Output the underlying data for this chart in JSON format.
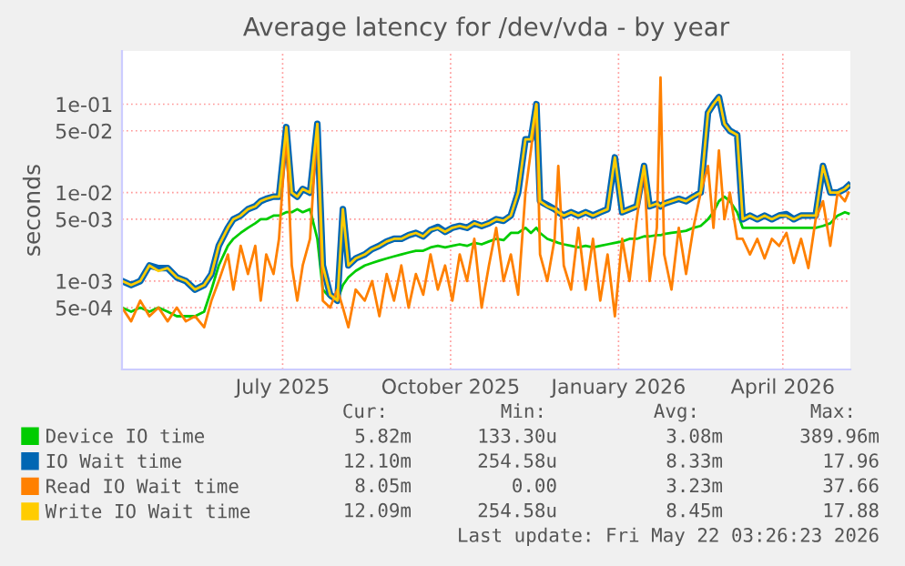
{
  "chart_data": {
    "type": "line",
    "title": "Average latency for /dev/vda - by year",
    "ylabel": "seconds",
    "log": "y",
    "grid": true,
    "legend": "bottom",
    "marker": "none",
    "line_style": "solid",
    "ylim": [
      0.0001,
      0.4
    ],
    "yticks": [
      {
        "value": 0.0005,
        "label": "5e-04"
      },
      {
        "value": 0.001,
        "label": "1e-03"
      },
      {
        "value": 0.005,
        "label": "5e-03"
      },
      {
        "value": 0.01,
        "label": "1e-02"
      },
      {
        "value": 0.05,
        "label": "5e-02"
      },
      {
        "value": 0.1,
        "label": "1e-01"
      }
    ],
    "xlim": [
      "2025-04-18",
      "2026-05-22"
    ],
    "xticks": [
      {
        "value": "2025-07-15",
        "label": "July 2025"
      },
      {
        "value": "2025-10-15",
        "label": "October 2025"
      },
      {
        "value": "2026-01-15",
        "label": "January 2026"
      },
      {
        "value": "2026-04-15",
        "label": "April 2026"
      }
    ],
    "x": [
      "2025-04-18",
      "2025-04-23",
      "2025-04-28",
      "2025-05-03",
      "2025-05-08",
      "2025-05-13",
      "2025-05-18",
      "2025-05-23",
      "2025-05-28",
      "2025-06-02",
      "2025-06-06",
      "2025-06-10",
      "2025-06-15",
      "2025-06-18",
      "2025-06-22",
      "2025-06-26",
      "2025-06-30",
      "2025-07-03",
      "2025-07-06",
      "2025-07-10",
      "2025-07-13",
      "2025-07-17",
      "2025-07-20",
      "2025-07-23",
      "2025-07-26",
      "2025-07-30",
      "2025-08-03",
      "2025-08-06",
      "2025-08-10",
      "2025-08-14",
      "2025-08-17",
      "2025-08-20",
      "2025-08-24",
      "2025-08-29",
      "2025-09-02",
      "2025-09-06",
      "2025-09-10",
      "2025-09-14",
      "2025-09-18",
      "2025-09-22",
      "2025-09-26",
      "2025-09-30",
      "2025-10-04",
      "2025-10-08",
      "2025-10-12",
      "2025-10-16",
      "2025-10-20",
      "2025-10-24",
      "2025-10-28",
      "2025-11-01",
      "2025-11-05",
      "2025-11-09",
      "2025-11-13",
      "2025-11-17",
      "2025-11-21",
      "2025-11-25",
      "2025-11-28",
      "2025-12-01",
      "2025-12-03",
      "2025-12-07",
      "2025-12-11",
      "2025-12-13",
      "2025-12-16",
      "2025-12-20",
      "2025-12-24",
      "2025-12-28",
      "2026-01-01",
      "2026-01-05",
      "2026-01-09",
      "2026-01-13",
      "2026-01-17",
      "2026-01-21",
      "2026-01-25",
      "2026-01-29",
      "2026-02-01",
      "2026-02-05",
      "2026-02-07",
      "2026-02-09",
      "2026-02-13",
      "2026-02-17",
      "2026-02-21",
      "2026-02-25",
      "2026-03-01",
      "2026-03-05",
      "2026-03-08",
      "2026-03-11",
      "2026-03-14",
      "2026-03-17",
      "2026-03-21",
      "2026-03-24",
      "2026-03-28",
      "2026-04-01",
      "2026-04-05",
      "2026-04-09",
      "2026-04-13",
      "2026-04-17",
      "2026-04-21",
      "2026-04-25",
      "2026-04-29",
      "2026-05-03",
      "2026-05-07",
      "2026-05-11",
      "2026-05-15",
      "2026-05-19",
      "2026-05-21"
    ],
    "series": [
      {
        "name": "Device IO time",
        "color": "#00cc00",
        "values": [
          0.0005,
          0.00045,
          0.0005,
          0.00045,
          0.0005,
          0.00045,
          0.0004,
          0.0004,
          0.0004,
          0.00045,
          0.0008,
          0.0015,
          0.0025,
          0.003,
          0.0035,
          0.004,
          0.0045,
          0.005,
          0.005,
          0.0055,
          0.0055,
          0.006,
          0.006,
          0.0065,
          0.006,
          0.0065,
          0.003,
          0.0008,
          0.00065,
          0.0006,
          0.0009,
          0.0011,
          0.0013,
          0.0015,
          0.0016,
          0.0017,
          0.0018,
          0.0019,
          0.002,
          0.0021,
          0.0022,
          0.0022,
          0.0024,
          0.0025,
          0.0024,
          0.0025,
          0.0026,
          0.0025,
          0.0027,
          0.0026,
          0.0028,
          0.003,
          0.0029,
          0.0035,
          0.0035,
          0.004,
          0.0035,
          0.004,
          0.0035,
          0.003,
          0.0028,
          0.0027,
          0.0026,
          0.0025,
          0.0024,
          0.0025,
          0.0024,
          0.0025,
          0.0026,
          0.0027,
          0.0028,
          0.003,
          0.003,
          0.0032,
          0.0032,
          0.0033,
          0.0033,
          0.0034,
          0.0035,
          0.0036,
          0.0037,
          0.004,
          0.0042,
          0.005,
          0.006,
          0.008,
          0.009,
          0.008,
          0.006,
          0.004,
          0.004,
          0.004,
          0.004,
          0.004,
          0.004,
          0.004,
          0.004,
          0.004,
          0.004,
          0.004,
          0.0042,
          0.0045,
          0.0055,
          0.006,
          0.0058
        ]
      },
      {
        "name": "IO Wait time",
        "color": "#0066b3",
        "values": [
          0.001,
          0.0009,
          0.001,
          0.0015,
          0.0014,
          0.0014,
          0.0011,
          0.001,
          0.0008,
          0.0009,
          0.0012,
          0.0025,
          0.004,
          0.005,
          0.0055,
          0.0065,
          0.007,
          0.008,
          0.0085,
          0.009,
          0.009,
          0.055,
          0.01,
          0.009,
          0.011,
          0.01,
          0.06,
          0.0015,
          0.0007,
          0.0006,
          0.0065,
          0.0015,
          0.0018,
          0.002,
          0.0023,
          0.0025,
          0.0028,
          0.003,
          0.003,
          0.0033,
          0.0035,
          0.0032,
          0.0038,
          0.0041,
          0.0036,
          0.004,
          0.0042,
          0.004,
          0.0045,
          0.0042,
          0.0045,
          0.005,
          0.0048,
          0.0055,
          0.01,
          0.04,
          0.04,
          0.1,
          0.008,
          0.0072,
          0.0065,
          0.006,
          0.0055,
          0.006,
          0.0055,
          0.006,
          0.0055,
          0.006,
          0.0065,
          0.025,
          0.006,
          0.0065,
          0.007,
          0.02,
          0.007,
          0.0075,
          0.007,
          0.0075,
          0.008,
          0.0085,
          0.008,
          0.009,
          0.01,
          0.08,
          0.1,
          0.12,
          0.06,
          0.05,
          0.045,
          0.005,
          0.0055,
          0.005,
          0.0055,
          0.005,
          0.0055,
          0.0057,
          0.005,
          0.0055,
          0.0055,
          0.0055,
          0.02,
          0.01,
          0.01,
          0.011,
          0.012
        ]
      },
      {
        "name": "Read IO Wait time",
        "color": "#ff8000",
        "values": [
          0.0005,
          0.00035,
          0.0006,
          0.0004,
          0.0005,
          0.00035,
          0.0005,
          0.00035,
          0.0004,
          0.0003,
          0.0006,
          0.001,
          0.002,
          0.0008,
          0.0025,
          0.0012,
          0.0025,
          0.0006,
          0.002,
          0.0012,
          0.003,
          0.05,
          0.0015,
          0.0006,
          0.0015,
          0.003,
          0.06,
          0.0006,
          0.0005,
          0.0008,
          0.0005,
          0.0003,
          0.0008,
          0.0006,
          0.001,
          0.0004,
          0.0012,
          0.0006,
          0.0015,
          0.0005,
          0.0012,
          0.0007,
          0.002,
          0.0008,
          0.0015,
          0.0006,
          0.002,
          0.001,
          0.003,
          0.0005,
          0.0015,
          0.004,
          0.001,
          0.002,
          0.0007,
          0.01,
          0.03,
          0.1,
          0.002,
          0.001,
          0.003,
          0.02,
          0.0015,
          0.0008,
          0.004,
          0.0008,
          0.003,
          0.0006,
          0.002,
          0.0004,
          0.003,
          0.001,
          0.005,
          0.02,
          0.001,
          0.004,
          0.2,
          0.002,
          0.0008,
          0.004,
          0.0012,
          0.004,
          0.01,
          0.02,
          0.004,
          0.03,
          0.005,
          0.01,
          0.003,
          0.003,
          0.002,
          0.003,
          0.0018,
          0.003,
          0.0025,
          0.0035,
          0.0016,
          0.003,
          0.0014,
          0.005,
          0.008,
          0.0025,
          0.01,
          0.008,
          0.01
        ]
      },
      {
        "name": "Write IO Wait time",
        "color": "#ffcc00",
        "values": [
          0.001,
          0.0009,
          0.001,
          0.0015,
          0.0013,
          0.0014,
          0.0011,
          0.001,
          0.0008,
          0.0009,
          0.0012,
          0.0025,
          0.004,
          0.005,
          0.0055,
          0.0065,
          0.007,
          0.008,
          0.0085,
          0.009,
          0.009,
          0.055,
          0.01,
          0.009,
          0.011,
          0.01,
          0.06,
          0.0015,
          0.0007,
          0.0006,
          0.0065,
          0.0015,
          0.0018,
          0.002,
          0.0023,
          0.0025,
          0.0028,
          0.003,
          0.003,
          0.0033,
          0.0035,
          0.0032,
          0.0038,
          0.004,
          0.0036,
          0.004,
          0.0042,
          0.004,
          0.0045,
          0.0042,
          0.0045,
          0.005,
          0.0048,
          0.0055,
          0.01,
          0.04,
          0.04,
          0.1,
          0.008,
          0.007,
          0.0065,
          0.006,
          0.0055,
          0.006,
          0.0055,
          0.006,
          0.0055,
          0.006,
          0.0065,
          0.025,
          0.006,
          0.0065,
          0.007,
          0.02,
          0.007,
          0.0075,
          0.007,
          0.0075,
          0.008,
          0.0085,
          0.008,
          0.009,
          0.01,
          0.08,
          0.1,
          0.12,
          0.06,
          0.05,
          0.045,
          0.005,
          0.0055,
          0.005,
          0.0055,
          0.005,
          0.0055,
          0.0055,
          0.005,
          0.0055,
          0.0055,
          0.0055,
          0.02,
          0.01,
          0.01,
          0.011,
          0.012
        ]
      }
    ],
    "annotations": [
      "Cur:",
      "Min:",
      "Avg:",
      "Max:",
      "5.82m",
      "133.30u",
      "3.08m",
      "389.96m",
      "12.10m",
      "254.58u",
      "8.33m",
      "17.96",
      "8.05m",
      "0.00",
      "3.23m",
      "37.66",
      "12.09m",
      "254.58u",
      "8.45m",
      "17.88",
      "Last update: Fri May 22 03:26:23 2026"
    ]
  }
}
